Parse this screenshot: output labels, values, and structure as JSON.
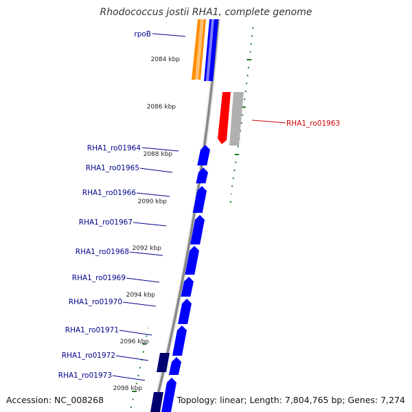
{
  "title": "Rhodococcus jostii RHA1, complete genome",
  "footer": {
    "accession": "Accession: NC_008268",
    "summary": "Topology: linear; Length: 7,804,765 bp; Genes: 7,274"
  },
  "colors": {
    "forward_gene": "#0000ff",
    "forward_gene_dark": "#00006e",
    "orange_block": "#ff8c00",
    "reverse_gene": "#ff0000",
    "reverse_gray": "#b0b0b0",
    "label_blue": "#00008b",
    "label_red": "#cc0000",
    "tick_green": "#1a7a1a",
    "backbone": "#888888"
  },
  "scale_ticks": [
    "2084 kbp",
    "2086 kbp",
    "2088 kbp",
    "2090 kbp",
    "2092 kbp",
    "2094 kbp",
    "2096 kbp",
    "2098 kbp"
  ],
  "genes": [
    {
      "label": "rpoB",
      "strand": "forward",
      "highlighted": false
    },
    {
      "label": "RHA1_ro01963",
      "strand": "reverse",
      "highlighted": true
    },
    {
      "label": "RHA1_ro01964",
      "strand": "forward",
      "highlighted": false
    },
    {
      "label": "RHA1_ro01965",
      "strand": "forward",
      "highlighted": false
    },
    {
      "label": "RHA1_ro01966",
      "strand": "forward",
      "highlighted": false
    },
    {
      "label": "RHA1_ro01967",
      "strand": "forward",
      "highlighted": false
    },
    {
      "label": "RHA1_ro01968",
      "strand": "forward",
      "highlighted": false
    },
    {
      "label": "RHA1_ro01969",
      "strand": "forward",
      "highlighted": false
    },
    {
      "label": "RHA1_ro01970",
      "strand": "forward",
      "highlighted": false
    },
    {
      "label": "RHA1_ro01971",
      "strand": "forward",
      "highlighted": false
    },
    {
      "label": "RHA1_ro01972",
      "strand": "forward",
      "highlighted": false
    },
    {
      "label": "RHA1_ro01973",
      "strand": "forward",
      "highlighted": false
    }
  ]
}
